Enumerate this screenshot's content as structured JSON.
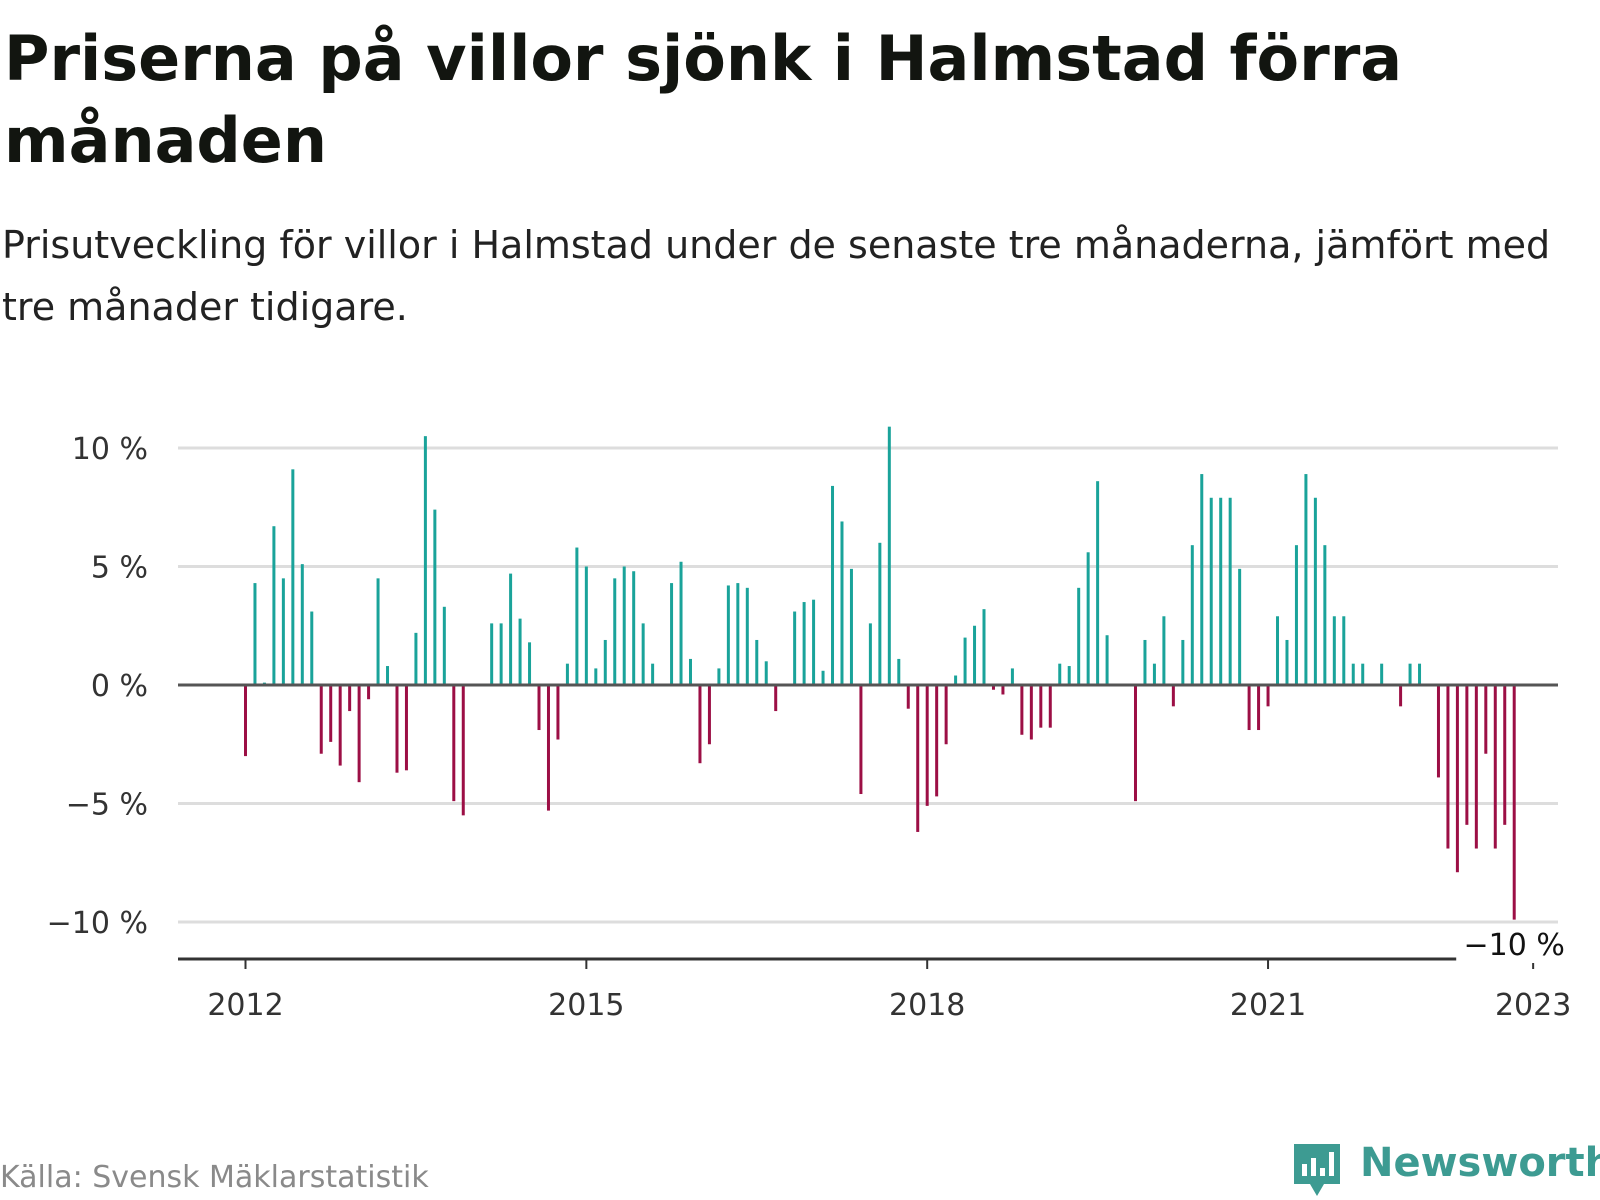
{
  "title": "Priserna på villor sjönk i Halmstad förra månaden",
  "subtitle": "Prisutveckling för villor i Halmstad under de senaste tre månaderna, jämfört med tre månader tidigare.",
  "source": "Källa: Svensk Mäklarstatistik",
  "brand": {
    "name": "Newsworthy",
    "icon": "newsworthy-logo-icon"
  },
  "colors": {
    "positive": "#1aa39a",
    "negative": "#9c0f45",
    "grid": "#dddddd",
    "zero_line": "#555555",
    "brand": "#3d9b92"
  },
  "chart_data": {
    "type": "bar",
    "ylim": [
      -11.5,
      11
    ],
    "y_ticks": [
      {
        "value": 10,
        "label": "10 %"
      },
      {
        "value": 5,
        "label": "5 %"
      },
      {
        "value": 0,
        "label": "0 %"
      },
      {
        "value": -5,
        "label": "−5 %"
      },
      {
        "value": -10,
        "label": "−10 %"
      }
    ],
    "x_ticks": [
      {
        "date": "2012-01",
        "label": "2012"
      },
      {
        "date": "2015-01",
        "label": "2015"
      },
      {
        "date": "2018-01",
        "label": "2018"
      },
      {
        "date": "2021-01",
        "label": "2021"
      },
      {
        "date": "2023-05",
        "label": "2023"
      }
    ],
    "annotation": {
      "date": "2023-03",
      "label": "−10 %"
    },
    "grid": true,
    "x": [
      "2012-01",
      "2012-02",
      "2012-03",
      "2012-04",
      "2012-05",
      "2012-06",
      "2012-07",
      "2012-08",
      "2012-09",
      "2012-10",
      "2012-11",
      "2012-12",
      "2013-01",
      "2013-02",
      "2013-03",
      "2013-04",
      "2013-05",
      "2013-06",
      "2013-07",
      "2013-08",
      "2013-09",
      "2013-10",
      "2013-11",
      "2013-12",
      "2014-01",
      "2014-02",
      "2014-03",
      "2014-04",
      "2014-05",
      "2014-06",
      "2014-07",
      "2014-08",
      "2014-09",
      "2014-10",
      "2014-11",
      "2014-12",
      "2015-01",
      "2015-02",
      "2015-03",
      "2015-04",
      "2015-05",
      "2015-06",
      "2015-07",
      "2015-08",
      "2015-09",
      "2015-10",
      "2015-11",
      "2015-12",
      "2016-01",
      "2016-02",
      "2016-03",
      "2016-04",
      "2016-05",
      "2016-06",
      "2016-07",
      "2016-08",
      "2016-09",
      "2016-10",
      "2016-11",
      "2016-12",
      "2017-01",
      "2017-02",
      "2017-03",
      "2017-04",
      "2017-05",
      "2017-06",
      "2017-07",
      "2017-08",
      "2017-09",
      "2017-10",
      "2017-11",
      "2017-12",
      "2018-01",
      "2018-02",
      "2018-03",
      "2018-04",
      "2018-05",
      "2018-06",
      "2018-07",
      "2018-08",
      "2018-09",
      "2018-10",
      "2018-11",
      "2018-12",
      "2019-01",
      "2019-02",
      "2019-03",
      "2019-04",
      "2019-05",
      "2019-06",
      "2019-07",
      "2019-08",
      "2019-09",
      "2019-10",
      "2019-11",
      "2019-12",
      "2020-01",
      "2020-02",
      "2020-03",
      "2020-04",
      "2020-05",
      "2020-06",
      "2020-07",
      "2020-08",
      "2020-09",
      "2020-10",
      "2020-11",
      "2020-12",
      "2021-01",
      "2021-02",
      "2021-03",
      "2021-04",
      "2021-05",
      "2021-06",
      "2021-07",
      "2021-08",
      "2021-09",
      "2021-10",
      "2021-11",
      "2021-12",
      "2022-01",
      "2022-02",
      "2022-03",
      "2022-04",
      "2022-05",
      "2022-06",
      "2022-07",
      "2022-08",
      "2022-09",
      "2022-10",
      "2022-11",
      "2022-12",
      "2023-01",
      "2023-02",
      "2023-03"
    ],
    "values": [
      -3.0,
      4.3,
      0.1,
      6.7,
      4.5,
      9.1,
      5.1,
      3.1,
      -2.9,
      -2.4,
      -3.4,
      -1.1,
      -4.1,
      -0.6,
      4.5,
      0.8,
      -3.7,
      -3.6,
      2.2,
      10.5,
      7.4,
      3.3,
      -4.9,
      -5.5,
      0,
      0,
      2.6,
      2.6,
      4.7,
      2.8,
      1.8,
      -1.9,
      -5.3,
      -2.3,
      0.9,
      5.8,
      5.0,
      0.7,
      1.9,
      4.5,
      5.0,
      4.8,
      2.6,
      0.9,
      0,
      4.3,
      5.2,
      1.1,
      -3.3,
      -2.5,
      0.7,
      4.2,
      4.3,
      4.1,
      1.9,
      1.0,
      -1.1,
      0,
      3.1,
      3.5,
      3.6,
      0.6,
      8.4,
      6.9,
      4.9,
      -4.6,
      2.6,
      6.0,
      10.9,
      1.1,
      -1.0,
      -6.2,
      -5.1,
      -4.7,
      -2.5,
      0.4,
      2.0,
      2.5,
      3.2,
      -0.2,
      -0.4,
      0.7,
      -2.1,
      -2.3,
      -1.8,
      -1.8,
      0.9,
      0.8,
      4.1,
      5.6,
      8.6,
      2.1,
      0,
      0,
      -4.9,
      1.9,
      0.9,
      2.9,
      -0.9,
      1.9,
      5.9,
      8.9,
      7.9,
      7.9,
      7.9,
      4.9,
      -1.9,
      -1.9,
      -0.9,
      2.9,
      1.9,
      5.9,
      8.9,
      7.9,
      5.9,
      2.9,
      2.9,
      0.9,
      0.9,
      0,
      0.9,
      0,
      -0.9,
      0.9,
      0.9,
      0,
      -3.9,
      -6.9,
      -7.9,
      -5.9,
      -6.9,
      -2.9,
      -6.9,
      -5.9,
      -9.9
    ]
  }
}
